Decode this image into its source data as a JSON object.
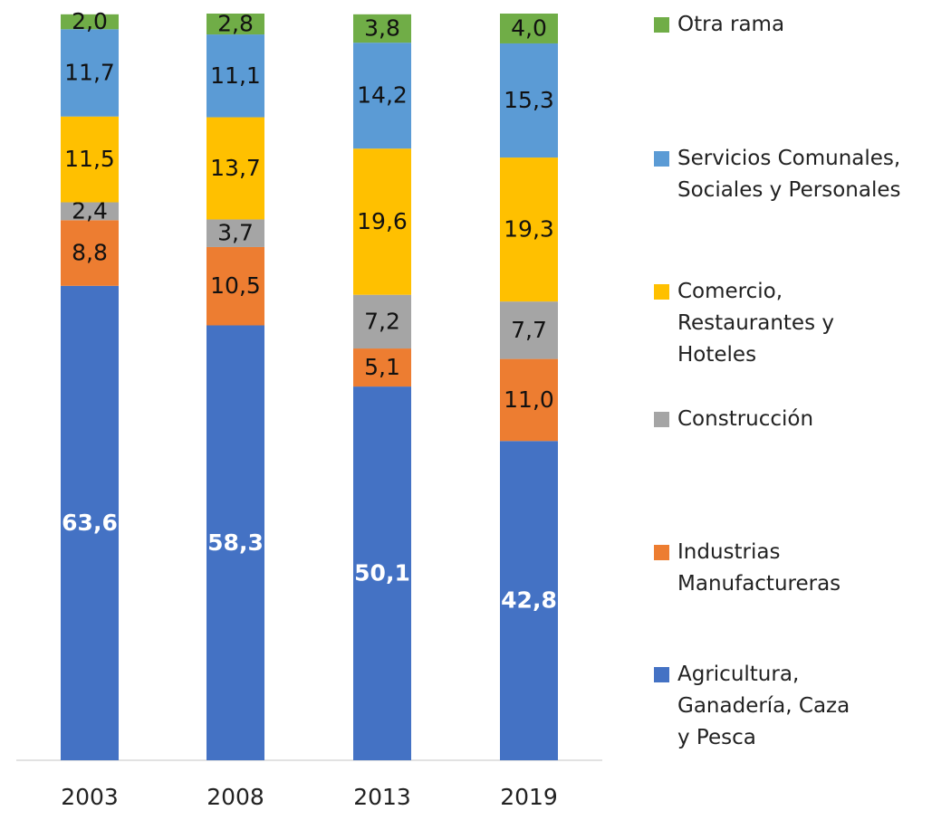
{
  "chart_data": {
    "type": "stacked_bar",
    "categories": [
      "2003",
      "2008",
      "2013",
      "2019"
    ],
    "series": [
      {
        "name": "Agricultura, Ganadería, Caza y Pesca",
        "color": "#4472c4",
        "values": [
          63.6,
          58.3,
          50.1,
          42.8
        ],
        "value_labels": [
          "63,6",
          "58,3",
          "50,1",
          "42,8"
        ]
      },
      {
        "name": "Industrias Manufactureras",
        "color": "#ed7d31",
        "values": [
          8.8,
          10.5,
          5.1,
          11.0
        ],
        "value_labels": [
          "8,8",
          "10,5",
          "5,1",
          "11,0"
        ]
      },
      {
        "name": "Construcción",
        "color": "#a5a5a5",
        "values": [
          2.4,
          3.7,
          7.2,
          7.7
        ],
        "value_labels": [
          "2,4",
          "3,7",
          "7,2",
          "7,7"
        ]
      },
      {
        "name": "Comercio, Restaurantes y Hoteles",
        "color": "#ffc000",
        "values": [
          11.5,
          13.7,
          19.6,
          19.3
        ],
        "value_labels": [
          "11,5",
          "13,7",
          "19,6",
          "19,3"
        ]
      },
      {
        "name": "Servicios Comunales, Sociales y Personales",
        "color": "#5b9bd5",
        "values": [
          11.7,
          11.1,
          14.2,
          15.3
        ],
        "value_labels": [
          "11,7",
          "11,1",
          "14,2",
          "15,3"
        ]
      },
      {
        "name": "Otra rama",
        "color": "#70ad47",
        "values": [
          2.0,
          2.8,
          3.8,
          4.0
        ],
        "value_labels": [
          "2,0",
          "2,8",
          "3,8",
          "4,0"
        ]
      }
    ],
    "legend": "right"
  }
}
